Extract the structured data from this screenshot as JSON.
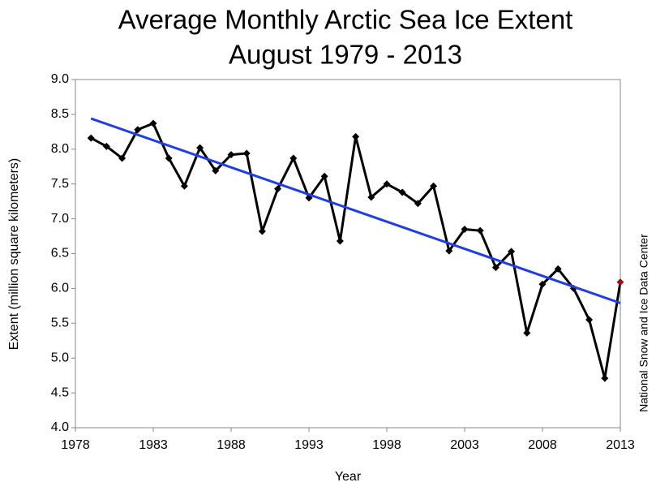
{
  "chart_data": {
    "type": "line",
    "title": "Average Monthly Arctic Sea Ice Extent",
    "subtitle": "August 1979 - 2013",
    "x_label": "Year",
    "y_label": "Extent (million square kilometers)",
    "source": "National Snow and Ice Data Center",
    "x": [
      1979,
      1980,
      1981,
      1982,
      1983,
      1984,
      1985,
      1986,
      1987,
      1988,
      1989,
      1990,
      1991,
      1992,
      1993,
      1994,
      1995,
      1996,
      1997,
      1998,
      1999,
      2000,
      2001,
      2002,
      2003,
      2004,
      2005,
      2006,
      2007,
      2008,
      2009,
      2010,
      2011,
      2012,
      2013
    ],
    "series": [
      {
        "color": "#000000",
        "values": [
          8.16,
          8.04,
          7.87,
          8.28,
          8.37,
          7.87,
          7.47,
          8.02,
          7.69,
          7.92,
          7.94,
          6.82,
          7.43,
          7.87,
          7.3,
          7.61,
          6.68,
          8.18,
          7.31,
          7.5,
          7.38,
          7.22,
          7.47,
          6.54,
          6.85,
          6.83,
          6.3,
          6.53,
          5.36,
          6.06,
          6.28,
          6.0,
          5.55,
          4.71,
          6.09
        ]
      }
    ],
    "last_point_color": "#9b1010",
    "trend": {
      "x": [
        1979,
        2013
      ],
      "values": [
        8.44,
        5.79
      ],
      "color": "#1f3fe0"
    },
    "xlim": [
      1978,
      2013
    ],
    "xticks": [
      1978,
      1983,
      1988,
      1993,
      1998,
      2003,
      2008,
      2013
    ],
    "ylim": [
      4,
      9
    ],
    "yticks": [
      {
        "value": 4,
        "label": "4.0"
      },
      4.5,
      {
        "value": 5,
        "label": "5.0"
      },
      5.5,
      {
        "value": 6,
        "label": "6.0"
      },
      6.5,
      {
        "value": 7,
        "label": "7.0"
      },
      7.5,
      {
        "value": 8,
        "label": "8.0"
      },
      8.5,
      {
        "value": 9,
        "label": "9.0"
      }
    ],
    "grid": false
  }
}
